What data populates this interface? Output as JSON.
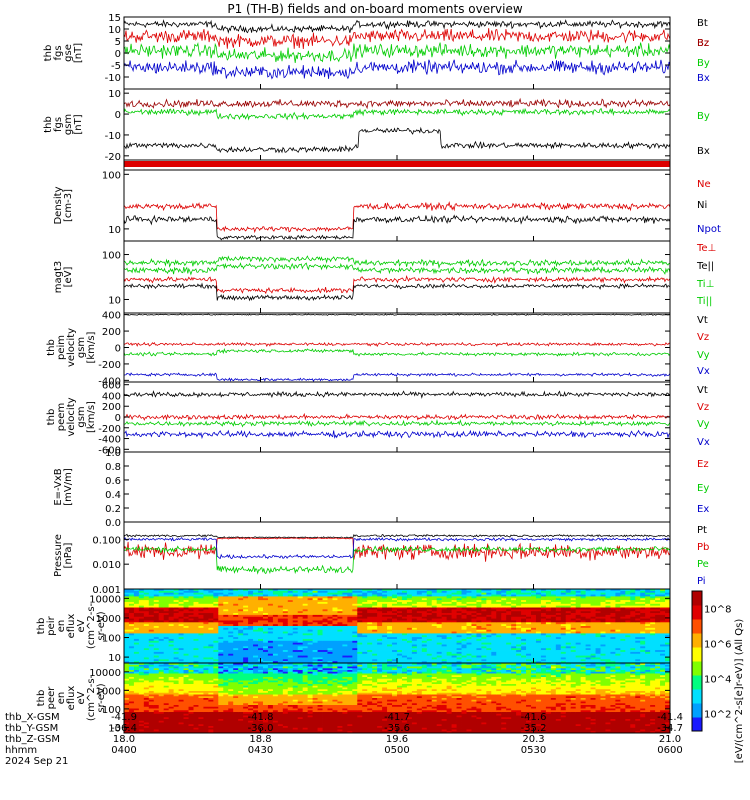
{
  "title": "P1 (TH-B) fields and on-board moments overview",
  "colors": {
    "black": "#000000",
    "red": "#dd0000",
    "green": "#00cc00",
    "blue": "#0000cc",
    "maroon": "#990000",
    "axis": "#000000"
  },
  "chart_data": [
    {
      "type": "line",
      "ylabel": [
        "thb",
        "fgs",
        "gse",
        "[nT]"
      ],
      "ylim": [
        -15,
        15
      ],
      "yticks": [
        "15",
        "10",
        "5",
        "0",
        "-5",
        "-10"
      ],
      "ytick_values": [
        15,
        10,
        5,
        0,
        -5,
        -10
      ],
      "series": [
        {
          "name": "Bt",
          "color": "black"
        },
        {
          "name": "Bz",
          "color": "red"
        },
        {
          "name": "By",
          "color": "green"
        },
        {
          "name": "Bx",
          "color": "blue"
        }
      ]
    },
    {
      "type": "line",
      "ylabel": [
        "thb",
        "fgs",
        "gsm",
        "[nT]"
      ],
      "ylim": [
        -22,
        12
      ],
      "yticks": [
        "10",
        "0",
        "-10",
        "-20"
      ],
      "ytick_values": [
        10,
        0,
        -10,
        -20
      ],
      "series": [
        {
          "name": "Bz",
          "color": "maroon"
        },
        {
          "name": "By",
          "color": "green"
        },
        {
          "name": "Bx",
          "color": "black"
        }
      ]
    },
    {
      "type": "bar"
    },
    {
      "type": "line",
      "ylabel": [
        "Density",
        "[cm-3]"
      ],
      "ylim": [
        6,
        120
      ],
      "scale": "log",
      "yticks": [
        "100",
        "10"
      ],
      "ytick_values": [
        100,
        10
      ],
      "series": [
        {
          "name": "Ne",
          "color": "red"
        },
        {
          "name": "Ni",
          "color": "black"
        },
        {
          "name": "Npot",
          "color": "blue"
        }
      ]
    },
    {
      "type": "line",
      "ylabel": [
        "magt3",
        "[eV]"
      ],
      "ylim": [
        5,
        200
      ],
      "scale": "log",
      "yticks": [
        "100",
        "10"
      ],
      "ytick_values": [
        100,
        10
      ],
      "series": [
        {
          "name": "Te⊥",
          "color": "red"
        },
        {
          "name": "Te||",
          "color": "black"
        },
        {
          "name": "Ti⊥",
          "color": "green"
        },
        {
          "name": "Ti||",
          "color": "green"
        }
      ]
    },
    {
      "type": "line",
      "ylabel": [
        "thb",
        "peim",
        "velocity",
        "gsm",
        "[km/s]"
      ],
      "ylim": [
        -420,
        420
      ],
      "yticks": [
        "400",
        "200",
        "0",
        "-200",
        "-400"
      ],
      "ytick_values": [
        400,
        200,
        0,
        -200,
        -400
      ],
      "series": [
        {
          "name": "Vt",
          "color": "black"
        },
        {
          "name": "Vz",
          "color": "red"
        },
        {
          "name": "Vy",
          "color": "green"
        },
        {
          "name": "Vx",
          "color": "blue"
        }
      ]
    },
    {
      "type": "line",
      "ylabel": [
        "thb",
        "peem",
        "velocity",
        "gsm",
        "[km/s]"
      ],
      "ylim": [
        -650,
        650
      ],
      "yticks": [
        "600",
        "400",
        "200",
        "0",
        "-200",
        "-400",
        "-600"
      ],
      "ytick_values": [
        600,
        400,
        200,
        0,
        -200,
        -400,
        -600
      ],
      "series": [
        {
          "name": "Vt",
          "color": "black"
        },
        {
          "name": "Vz",
          "color": "red"
        },
        {
          "name": "Vy",
          "color": "green"
        },
        {
          "name": "Vx",
          "color": "blue"
        }
      ]
    },
    {
      "type": "line",
      "ylabel": [
        "E=-VxB",
        "[mV/m]"
      ],
      "ylim": [
        0,
        1
      ],
      "yticks": [
        "1.0",
        "0.8",
        "0.6",
        "0.4",
        "0.2",
        "0.0"
      ],
      "ytick_values": [
        1.0,
        0.8,
        0.6,
        0.4,
        0.2,
        0.0
      ],
      "series": [
        {
          "name": "Ez",
          "color": "red"
        },
        {
          "name": "Ey",
          "color": "green"
        },
        {
          "name": "Ex",
          "color": "blue"
        }
      ]
    },
    {
      "type": "line",
      "ylabel": [
        "Pressure",
        "[nPa]"
      ],
      "ylim": [
        0.001,
        0.5
      ],
      "scale": "log",
      "yticks": [
        "0.100",
        "0.010",
        "0.001"
      ],
      "ytick_values": [
        0.1,
        0.01,
        0.001
      ],
      "series": [
        {
          "name": "Pt",
          "color": "black"
        },
        {
          "name": "Pb",
          "color": "red"
        },
        {
          "name": "Pe",
          "color": "green"
        },
        {
          "name": "Pi",
          "color": "blue"
        }
      ]
    },
    {
      "type": "heatmap",
      "ylabel": [
        "thb",
        "peir",
        "en",
        "eflux",
        "eV",
        "(cm^2-s-",
        "sr-eV)"
      ],
      "ylim": [
        5,
        30000
      ],
      "scale": "log",
      "yticks": [
        "10000",
        "1000",
        "100",
        "10"
      ],
      "ytick_values": [
        10000,
        1000,
        100,
        10
      ]
    },
    {
      "type": "heatmap",
      "ylabel": [
        "thb",
        "peer",
        "en",
        "eflux",
        "eV",
        "(cm^2-s-",
        "sr-eV)"
      ],
      "ylim": [
        5,
        30000
      ],
      "scale": "log",
      "yticks": [
        "10000",
        "1000",
        "100",
        "10"
      ],
      "ytick_values": [
        10000,
        1000,
        100,
        10
      ]
    }
  ],
  "colorbar": {
    "label": "[eV/(cm^2-s[e]r-eV)] (All Qs)",
    "ticks": [
      "10^8",
      "10^6",
      "10^4",
      "10^2"
    ],
    "tick_values": [
      8,
      6,
      4,
      2
    ]
  },
  "x_axis": {
    "rows": [
      {
        "label": "thb_X-GSM",
        "values": [
          "-41.9",
          "-41.8",
          "-41.7",
          "-41.6",
          "-41.4"
        ]
      },
      {
        "label": "thb_Y-GSM",
        "values": [
          "-36.4",
          "-36.0",
          "-35.6",
          "-35.2",
          "-34.7"
        ]
      },
      {
        "label": "thb_Z-GSM",
        "values": [
          "18.0",
          "18.8",
          "19.6",
          "20.3",
          "21.0"
        ]
      },
      {
        "label": "hhmm",
        "values": [
          "0400",
          "0430",
          "0500",
          "0530",
          "0600"
        ]
      }
    ],
    "date": "2024 Sep 21",
    "time_range": [
      "0400",
      "0600"
    ]
  }
}
